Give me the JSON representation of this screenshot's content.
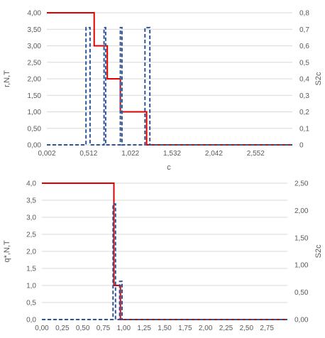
{
  "chart_data": [
    {
      "type": "line",
      "xlabel": "c",
      "ylabel_left": "r,N,T",
      "ylabel_right": "S2c",
      "xlim": [
        0.002,
        3.0
      ],
      "ylim_left": [
        0,
        4
      ],
      "ylim_right": [
        0,
        0.8
      ],
      "x_ticks": [
        "0,002",
        "0,512",
        "1,022",
        "1,532",
        "2,042",
        "2,552"
      ],
      "x_tick_values": [
        0.002,
        0.512,
        1.022,
        1.532,
        2.042,
        2.552
      ],
      "y_ticks_left": [
        "0,00",
        "0,50",
        "1,00",
        "1,50",
        "2,00",
        "2,50",
        "3,00",
        "3,50",
        "4,00"
      ],
      "y_ticks_right": [
        "0",
        "0,1",
        "0,2",
        "0,3",
        "0,4",
        "0,5",
        "0,6",
        "0,7",
        "0,8"
      ],
      "grid": true,
      "series": [
        {
          "axis": "left",
          "style": "solid",
          "color": "#e00000",
          "x": [
            0.002,
            0.58,
            0.58,
            0.74,
            0.74,
            0.9,
            0.9,
            1.22,
            1.22,
            3.0
          ],
          "y": [
            4,
            4,
            3,
            3,
            2,
            2,
            1,
            1,
            0,
            0
          ]
        },
        {
          "axis": "right",
          "style": "dashed",
          "color": "#2f5597",
          "x": [
            0.002,
            0.48,
            0.48,
            0.53,
            0.53,
            0.7,
            0.7,
            0.72,
            0.72,
            0.9,
            0.9,
            0.92,
            0.92,
            1.2,
            1.2,
            1.26,
            1.26,
            3.0
          ],
          "y": [
            0,
            0,
            0.71,
            0.71,
            0,
            0,
            0.71,
            0.71,
            0,
            0,
            0.71,
            0.71,
            0,
            0,
            0.71,
            0.71,
            0,
            0
          ]
        }
      ]
    },
    {
      "type": "line",
      "xlabel": "c",
      "ylabel_left": "q*,N,T",
      "ylabel_right": "S2c",
      "xlim": [
        0,
        3.0
      ],
      "ylim_left": [
        0,
        4
      ],
      "ylim_right": [
        0,
        2.5
      ],
      "x_ticks": [
        "0,00",
        "0,25",
        "0,50",
        "0,75",
        "1,00",
        "1,25",
        "1,50",
        "1,75",
        "2,00",
        "2,25",
        "2,50",
        "2,75"
      ],
      "x_tick_values": [
        0,
        0.25,
        0.5,
        0.75,
        1.0,
        1.25,
        1.5,
        1.75,
        2.0,
        2.25,
        2.5,
        2.75
      ],
      "y_ticks_left": [
        "0,0",
        "0,5",
        "1,0",
        "1,5",
        "2,0",
        "2,5",
        "3,0",
        "3,5",
        "4,0"
      ],
      "y_ticks_right": [
        "0,00",
        "0,50",
        "1,00",
        "1,50",
        "2,00",
        "2,50"
      ],
      "grid": true,
      "series": [
        {
          "axis": "left",
          "style": "solid",
          "color": "#e00000",
          "x": [
            0,
            0.88,
            0.88,
            0.96,
            0.96,
            3.0
          ],
          "y": [
            4,
            4,
            1,
            1,
            0,
            0
          ]
        },
        {
          "axis": "right",
          "style": "dashed",
          "color": "#2f5597",
          "x": [
            0,
            0.87,
            0.87,
            0.9,
            0.9,
            0.95,
            0.95,
            0.98,
            0.98,
            3.0
          ],
          "y": [
            0,
            0,
            2.12,
            2.12,
            0,
            0,
            0.7,
            0.7,
            0,
            0
          ]
        }
      ]
    }
  ]
}
